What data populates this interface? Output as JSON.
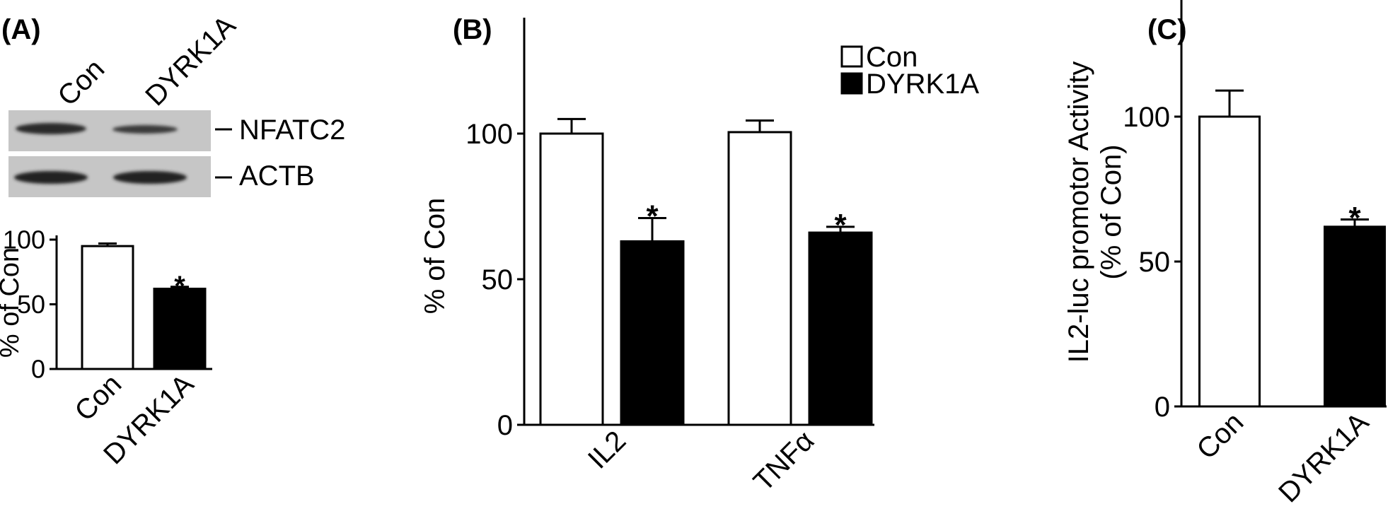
{
  "blot": {
    "lanes": [
      "Con",
      "DYRK1A"
    ],
    "bands": [
      "NFATC2",
      "ACTB"
    ]
  },
  "chart_data": [
    {
      "panel": "(A)",
      "type": "bar",
      "categories": [
        "Con",
        "DYRK1A"
      ],
      "values": [
        95,
        62
      ],
      "errors": [
        2,
        1.5
      ],
      "significance": [
        "",
        "*"
      ],
      "colors": [
        "#ffffff",
        "#000000"
      ],
      "ylabel": "% of Con",
      "ylim": [
        0,
        100
      ],
      "yticks": [
        "0",
        "50",
        "100"
      ]
    },
    {
      "panel": "(B)",
      "type": "bar",
      "categories": [
        "IL2",
        "TNFα"
      ],
      "series": [
        {
          "name": "Con",
          "color": "#ffffff",
          "values": [
            100,
            100.5
          ],
          "errors": [
            5,
            4
          ],
          "significance": [
            "",
            ""
          ]
        },
        {
          "name": "DYRK1A",
          "color": "#000000",
          "values": [
            63,
            66
          ],
          "errors": [
            8,
            2
          ],
          "significance": [
            "*",
            "*"
          ]
        }
      ],
      "ylabel": "% of Con",
      "ylim": [
        0,
        100
      ],
      "yticks": [
        "0",
        "50",
        "100"
      ]
    },
    {
      "panel": "(C)",
      "type": "bar",
      "categories": [
        "Con",
        "DYRK1A"
      ],
      "values": [
        100,
        62
      ],
      "errors": [
        9,
        2.5
      ],
      "significance": [
        "",
        "*"
      ],
      "colors": [
        "#ffffff",
        "#000000"
      ],
      "ylabel_lines": [
        "IL2-luc promotor Activity",
        "(% of Con)"
      ],
      "ylim": [
        0,
        100
      ],
      "yticks": [
        "0",
        "50",
        "100"
      ]
    }
  ]
}
